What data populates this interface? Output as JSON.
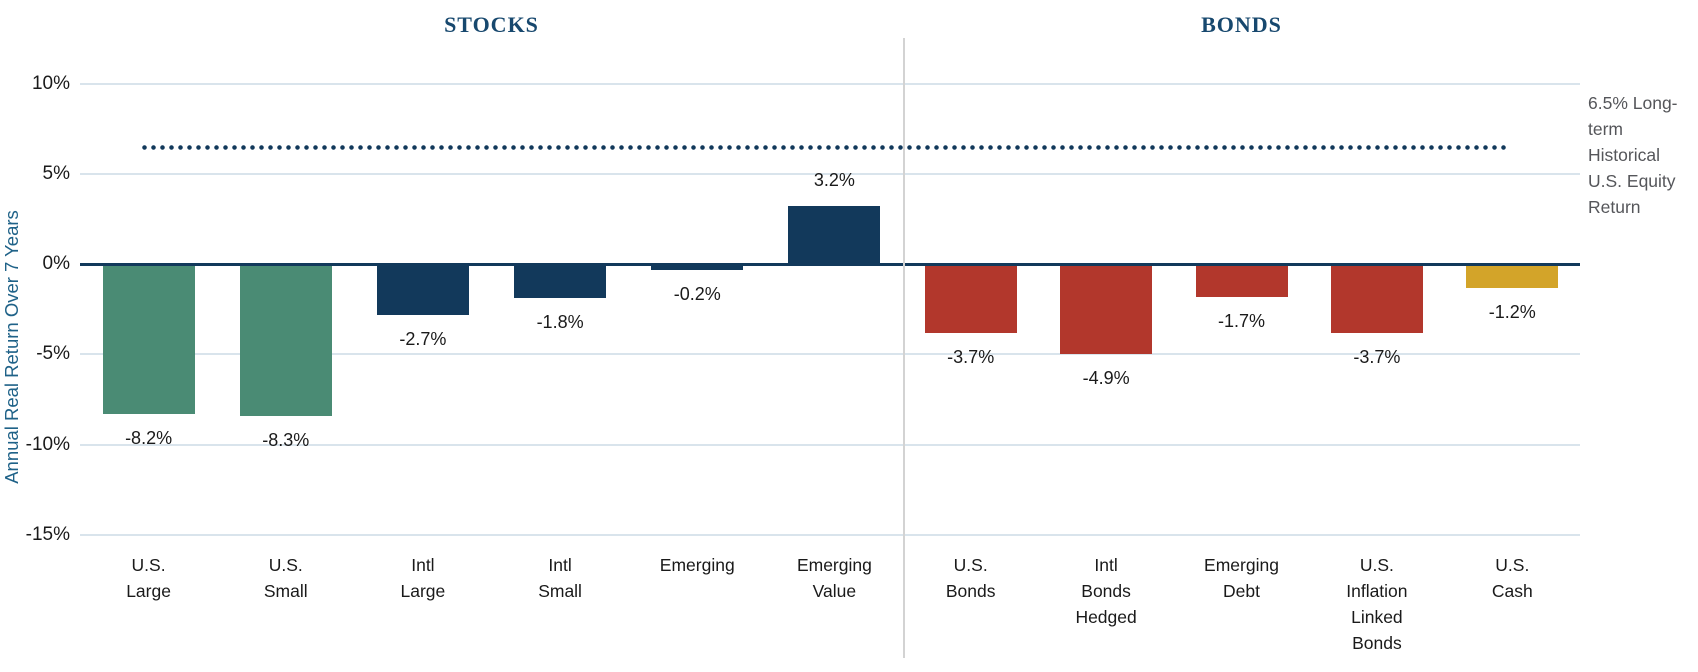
{
  "sections": {
    "stocks": "STOCKS",
    "bonds": "BONDS"
  },
  "y_axis": {
    "title": "Annual Real Return Over 7 Years"
  },
  "annotation": {
    "text": "6.5% Long-\nterm\nHistorical\nU.S. Equity\nReturn"
  },
  "colors": {
    "stock_us": "#4A8B74",
    "stock_intl": "#12395B",
    "bond": "#B2372C",
    "cash": "#D3A429",
    "grid": "#D9E4EC",
    "zero_axis": "#12395B",
    "reference_dots": "#12395B",
    "divider": "#D3D3D3",
    "section_title": "#17486E",
    "axis_title": "#1F6288",
    "annotation_text": "#55565A",
    "tick_text": "#1A1A1A",
    "value_text": "#1A1A1A"
  },
  "chart_data": {
    "type": "bar",
    "ylabel": "Annual Real Return Over 7 Years",
    "ylim": [
      -15,
      10
    ],
    "yticks": [
      10,
      5,
      0,
      -5,
      -10,
      -15
    ],
    "ytick_labels": [
      "10%",
      "5%",
      "0%",
      "-5%",
      "-10%",
      "-15%"
    ],
    "grid": true,
    "reference_line": {
      "value": 6.5,
      "style": "dotted",
      "label": "6.5% Long-term Historical U.S. Equity Return"
    },
    "groups": [
      "STOCKS",
      "BONDS"
    ],
    "bars": [
      {
        "label": "U.S.\nLarge",
        "value": -8.2,
        "display": "-8.2%",
        "color_key": "stock_us",
        "group": "STOCKS"
      },
      {
        "label": "U.S.\nSmall",
        "value": -8.3,
        "display": "-8.3%",
        "color_key": "stock_us",
        "group": "STOCKS"
      },
      {
        "label": "Intl\nLarge",
        "value": -2.7,
        "display": "-2.7%",
        "color_key": "stock_intl",
        "group": "STOCKS"
      },
      {
        "label": "Intl\nSmall",
        "value": -1.8,
        "display": "-1.8%",
        "color_key": "stock_intl",
        "group": "STOCKS"
      },
      {
        "label": "Emerging",
        "value": -0.2,
        "display": "-0.2%",
        "color_key": "stock_intl",
        "group": "STOCKS"
      },
      {
        "label": "Emerging\nValue",
        "value": 3.2,
        "display": "3.2%",
        "color_key": "stock_intl",
        "group": "STOCKS"
      },
      {
        "label": "U.S.\nBonds",
        "value": -3.7,
        "display": "-3.7%",
        "color_key": "bond",
        "group": "BONDS"
      },
      {
        "label": "Intl\nBonds\nHedged",
        "value": -4.9,
        "display": "-4.9%",
        "color_key": "bond",
        "group": "BONDS"
      },
      {
        "label": "Emerging\nDebt",
        "value": -1.7,
        "display": "-1.7%",
        "color_key": "bond",
        "group": "BONDS"
      },
      {
        "label": "U.S.\nInflation\nLinked\nBonds",
        "value": -3.7,
        "display": "-3.7%",
        "color_key": "bond",
        "group": "BONDS"
      },
      {
        "label": "U.S.\nCash",
        "value": -1.2,
        "display": "-1.2%",
        "color_key": "cash",
        "group": "BONDS"
      }
    ]
  }
}
